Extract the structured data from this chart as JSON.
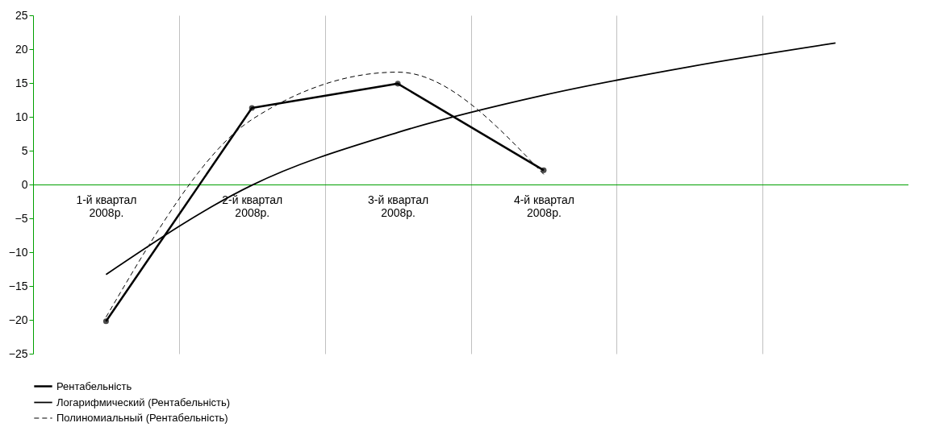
{
  "chart_data": {
    "type": "line",
    "categories": [
      "1-й квартал\n2008р.",
      "2-й квартал\n2008р.",
      "3-й квартал\n2008р.",
      "4-й квартал\n2008р.",
      null,
      null
    ],
    "ylim": [
      -25,
      25
    ],
    "yticks": [
      -25,
      -20,
      -15,
      -10,
      -5,
      0,
      5,
      10,
      15,
      20,
      25
    ],
    "grid": "x",
    "legend": "bottom",
    "series": [
      {
        "name": "Рентабельність",
        "color": "#000000",
        "marker": "circle",
        "line_style": "solid",
        "values": [
          -20.2,
          11.3,
          14.9,
          2.1,
          null,
          null
        ]
      },
      {
        "name": "Логарифмический (Рентабельність)",
        "color": "#000000",
        "marker": "none",
        "line_style": "solid",
        "values": [
          -13.3,
          -0.1,
          7.7,
          13.2,
          17.4,
          20.9
        ]
      },
      {
        "name": "Полиномиальный (Рентабельність)",
        "color": "#000000",
        "marker": "none",
        "line_style": "dashed",
        "values": [
          -19.6,
          9.6,
          16.6,
          1.5,
          null,
          null
        ]
      }
    ]
  }
}
